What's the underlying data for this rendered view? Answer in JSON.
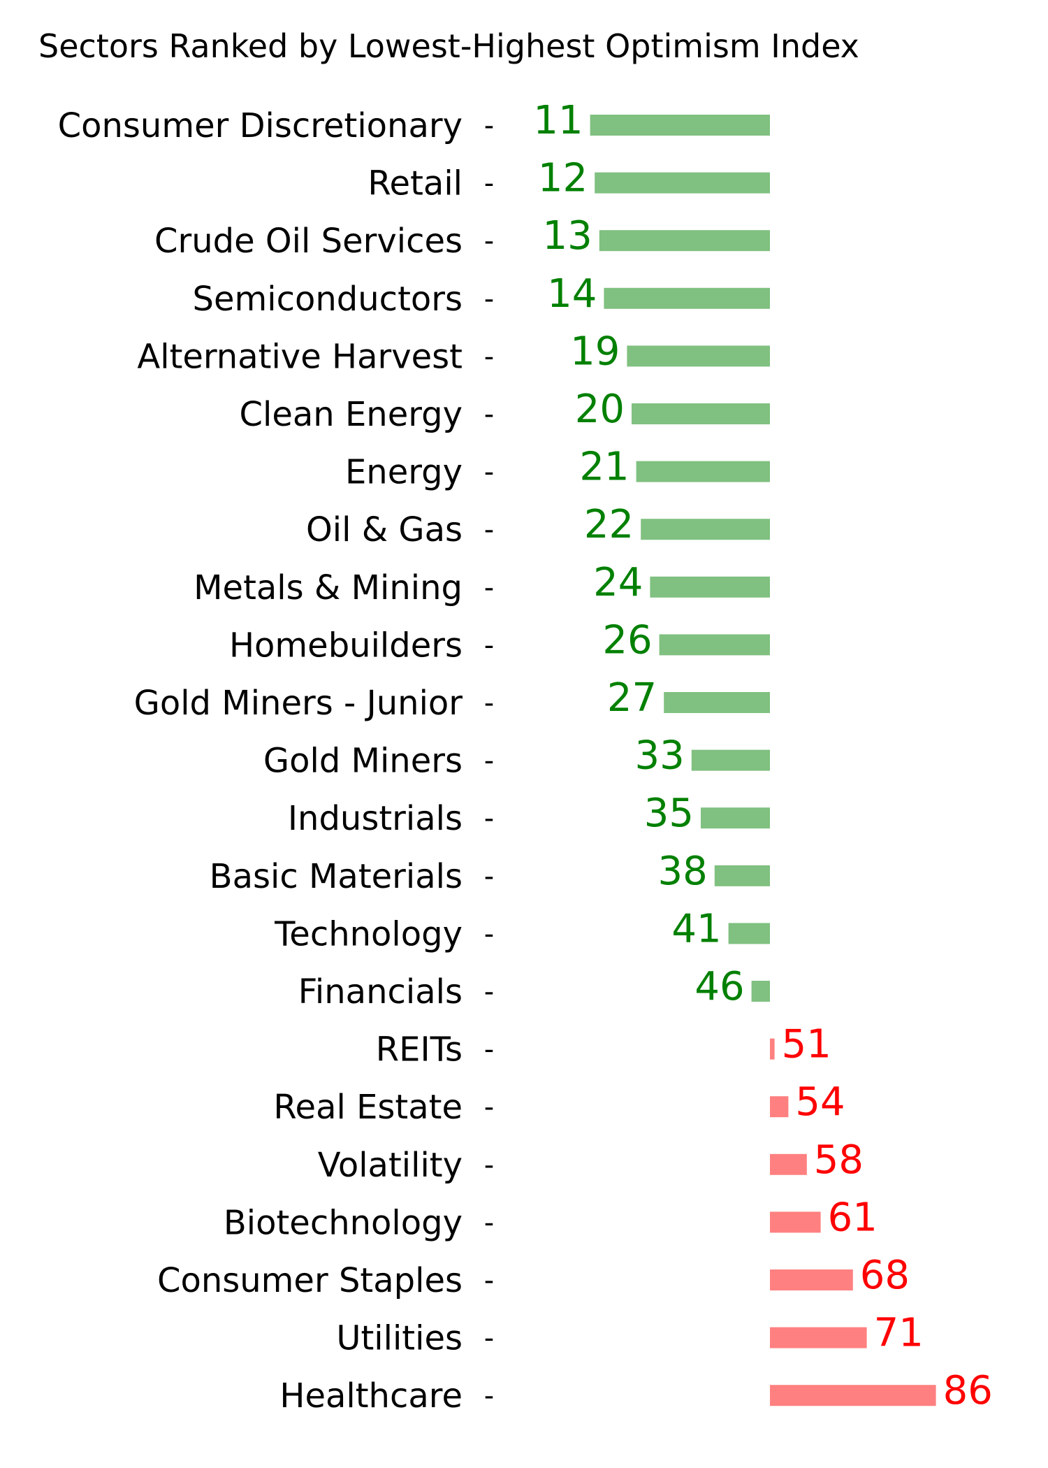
{
  "chart_data": {
    "type": "bar",
    "orientation": "horizontal-diverging",
    "title": "Sectors Ranked by Lowest-Highest Optimism Index",
    "xlabel": "",
    "ylabel": "",
    "baseline": 50,
    "grid": false,
    "legend": "none",
    "tick_mark": "-",
    "categories": [
      "Consumer Discretionary",
      "Retail",
      "Crude Oil Services",
      "Semiconductors",
      "Alternative Harvest",
      "Clean Energy",
      "Energy",
      "Oil & Gas",
      "Metals & Mining",
      "Homebuilders",
      "Gold Miners - Junior",
      "Gold Miners",
      "Industrials",
      "Basic Materials",
      "Technology",
      "Financials",
      "REITs",
      "Real Estate",
      "Volatility",
      "Biotechnology",
      "Consumer Staples",
      "Utilities",
      "Healthcare"
    ],
    "values": [
      11,
      12,
      13,
      14,
      19,
      20,
      21,
      22,
      24,
      26,
      27,
      33,
      35,
      38,
      41,
      46,
      51,
      54,
      58,
      61,
      68,
      71,
      86
    ],
    "colors": {
      "below_bar": "#80c080",
      "below_text": "#008000",
      "above_bar": "#ff8080",
      "above_text": "#ff0000"
    }
  }
}
